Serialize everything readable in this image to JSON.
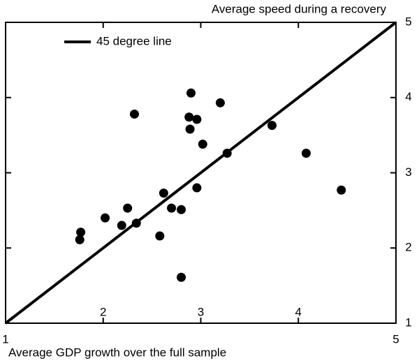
{
  "chart_data": {
    "type": "scatter",
    "y_label": "Average speed during a recovery",
    "x_label": "Average GDP growth over the full sample",
    "xlim": [
      1,
      5
    ],
    "ylim": [
      1,
      5
    ],
    "xticks": [
      1,
      2,
      3,
      4,
      5
    ],
    "yticks": [
      1,
      2,
      3,
      4,
      5
    ],
    "series": [
      {
        "color": "#000000",
        "x": [
          1.76,
          1.77,
          2.02,
          2.19,
          2.25,
          2.34,
          2.32,
          2.58,
          2.62,
          2.7,
          2.8,
          2.8,
          2.9,
          2.88,
          2.89,
          2.96,
          2.96,
          3.02,
          3.2,
          3.27,
          3.73,
          4.08,
          4.44
        ],
        "values": [
          2.11,
          2.21,
          2.4,
          2.3,
          2.53,
          2.33,
          3.78,
          2.16,
          2.73,
          2.53,
          2.51,
          1.61,
          4.06,
          3.74,
          3.58,
          3.71,
          2.8,
          3.38,
          3.93,
          3.26,
          3.63,
          3.26,
          2.77
        ]
      }
    ],
    "reference_line": {
      "name": "45 degree line",
      "color": "#000000",
      "x": [
        1,
        5
      ],
      "values": [
        1,
        5
      ]
    },
    "legend": "upper left"
  }
}
